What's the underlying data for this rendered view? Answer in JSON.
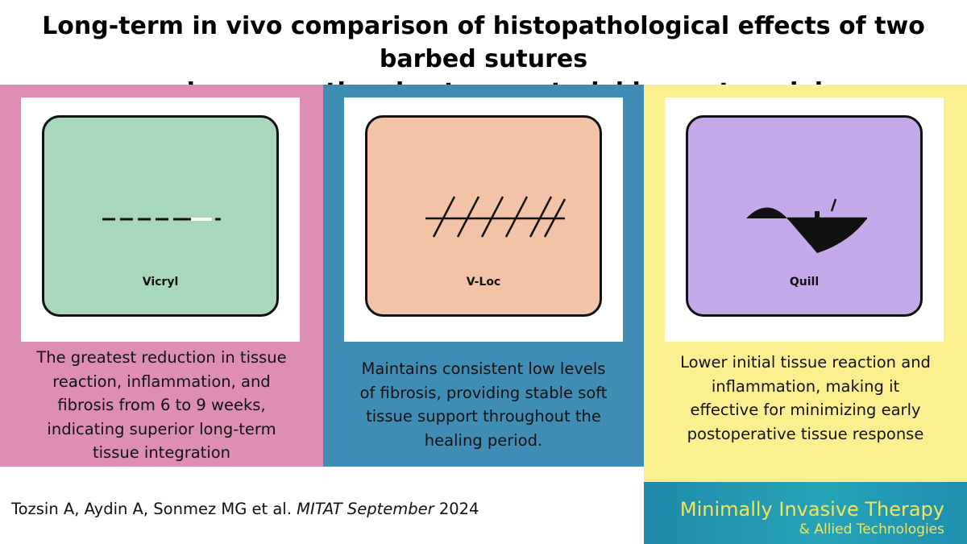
{
  "title": {
    "line1": "Long-term in vivo comparison of histopathological effects of two barbed sutures",
    "line2": "and a conventional suture material in a rat model"
  },
  "panels": [
    {
      "label": "Vicryl",
      "caption": [
        "The greatest reduction in tissue",
        "reaction, inflammation, and",
        "fibrosis from 6 to 9 weeks,",
        "indicating superior long-term",
        "tissue integration"
      ],
      "panel_color": "#de8eb5",
      "tile_color": "#a9d7bc",
      "icon": "dashed-suture-icon"
    },
    {
      "label": "V-Loc",
      "caption": [
        "Maintains consistent low levels",
        "of fibrosis, providing stable soft",
        "tissue support throughout the",
        "healing period."
      ],
      "panel_color": "#3f8cb5",
      "tile_color": "#f2c3a7",
      "icon": "barbed-suture-icon"
    },
    {
      "label": "Quill",
      "caption": [
        "Lower initial tissue reaction and",
        "inflammation, making it",
        "effective for minimizing early",
        "postoperative tissue response"
      ],
      "panel_color": "#fcef90",
      "tile_color": "#c6a9ea",
      "icon": "bidirectional-barb-icon"
    }
  ],
  "citation": {
    "authors": "Tozsin A, Aydin A, Sonmez MG et al. ",
    "journal": "MITAT September",
    "year": " 2024"
  },
  "journal_logo": {
    "name": "Minimally Invasive Therapy",
    "subtitle": "& Allied Technologies"
  }
}
